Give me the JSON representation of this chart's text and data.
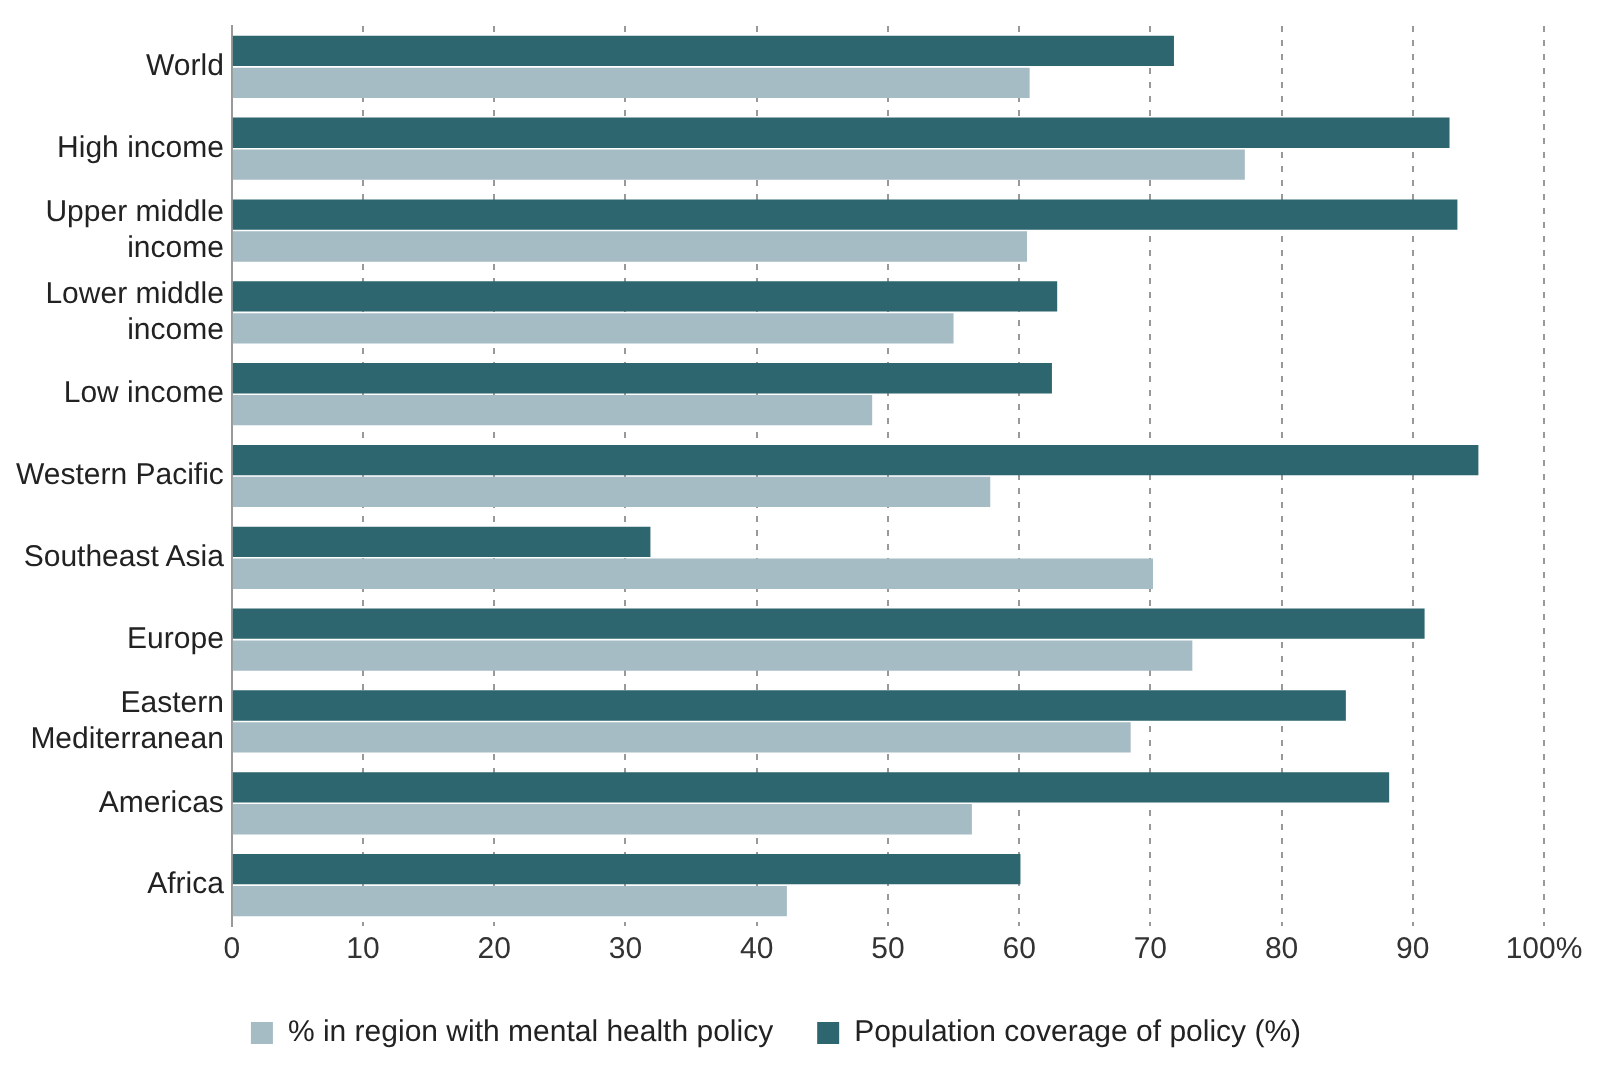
{
  "chart_data": {
    "type": "bar",
    "orientation": "horizontal",
    "categories": [
      "World",
      "High income",
      "Upper middle income",
      "Lower middle income",
      "Low income",
      "Western Pacific",
      "Southeast Asia",
      "Europe",
      "Eastern Mediterranean",
      "Americas",
      "Africa"
    ],
    "series": [
      {
        "name": "% in region with mental health policy",
        "color": "#a5bcc5",
        "values": [
          60.8,
          77.2,
          60.6,
          55.0,
          48.8,
          57.8,
          70.2,
          73.2,
          68.5,
          56.4,
          42.3
        ]
      },
      {
        "name": "Population coverage of policy (%)",
        "color": "#2e6670",
        "values": [
          71.8,
          92.8,
          93.4,
          62.9,
          62.5,
          95.0,
          31.9,
          90.9,
          84.9,
          88.2,
          60.1
        ]
      }
    ],
    "xlim": [
      0,
      100
    ],
    "xticks": [
      0,
      10,
      20,
      30,
      40,
      50,
      60,
      70,
      80,
      90,
      {
        "value": 100,
        "label": "100%"
      }
    ],
    "grid": "x",
    "legend": "bottom"
  }
}
